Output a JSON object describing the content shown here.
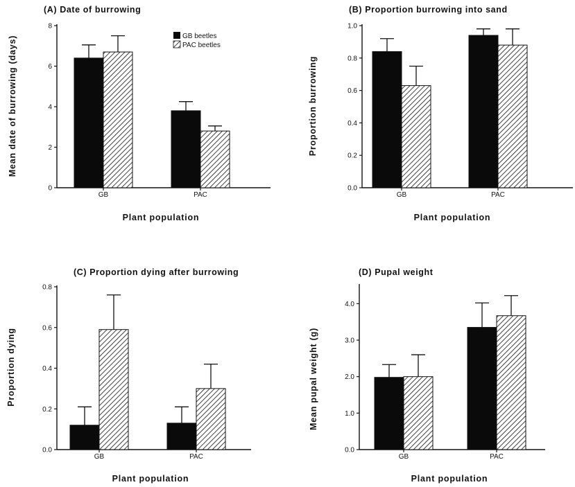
{
  "colors": {
    "gb_fill": "#0a0a0a",
    "pac_hatch": "#111111",
    "background": "#ffffff"
  },
  "legend": {
    "entries": [
      "GB beetles",
      "PAC beetles"
    ]
  },
  "chart_data": [
    {
      "type": "bar",
      "title": "(A)  Date  of  burrowing",
      "xlabel": "Plant  population",
      "ylabel": "Mean  date  of  burrowing  (days)",
      "categories": [
        "GB",
        "PAC"
      ],
      "ylim": [
        0,
        8
      ],
      "yticks": [
        "0",
        "2",
        "4",
        "6",
        "8"
      ],
      "series": [
        {
          "name": "GB beetles",
          "values": [
            6.4,
            3.8
          ],
          "errors": [
            0.65,
            0.45
          ]
        },
        {
          "name": "PAC beetles",
          "values": [
            6.7,
            2.8
          ],
          "errors": [
            0.8,
            0.25
          ]
        }
      ],
      "legend": "top-right"
    },
    {
      "type": "bar",
      "title": "(B)  Proportion  burrowing  into  sand",
      "xlabel": "Plant  population",
      "ylabel": "Proportion  burrowing",
      "categories": [
        "GB",
        "PAC"
      ],
      "ylim": [
        0,
        1
      ],
      "yticks": [
        "0.0",
        "0.2",
        "0.4",
        "0.6",
        "0.8",
        "1.0"
      ],
      "series": [
        {
          "name": "GB beetles",
          "values": [
            0.84,
            0.94
          ],
          "errors": [
            0.08,
            0.04
          ]
        },
        {
          "name": "PAC beetles",
          "values": [
            0.63,
            0.88
          ],
          "errors": [
            0.12,
            0.1
          ]
        }
      ]
    },
    {
      "type": "bar",
      "title": "(C)  Proportion  dying  after  burrowing",
      "xlabel": "Plant  population",
      "ylabel": "Proportion  dying",
      "categories": [
        "GB",
        "PAC"
      ],
      "ylim": [
        0,
        0.8
      ],
      "yticks": [
        "0.0",
        "0.2",
        "0.4",
        "0.6",
        "0.8"
      ],
      "series": [
        {
          "name": "GB beetles",
          "values": [
            0.12,
            0.13
          ],
          "errors": [
            0.09,
            0.08
          ]
        },
        {
          "name": "PAC beetles",
          "values": [
            0.59,
            0.3
          ],
          "errors": [
            0.17,
            0.12
          ]
        }
      ]
    },
    {
      "type": "bar",
      "title": "(D)  Pupal  weight",
      "xlabel": "Plant  population",
      "ylabel": "Mean  pupal  weight  (g)",
      "categories": [
        "GB",
        "PAC"
      ],
      "ylim": [
        0,
        4.5
      ],
      "yticks": [
        "0.0",
        "1.0",
        "2.0",
        "3.0",
        "4.0"
      ],
      "series": [
        {
          "name": "GB beetles",
          "values": [
            1.98,
            3.35
          ],
          "errors": [
            0.35,
            0.67
          ]
        },
        {
          "name": "PAC beetles",
          "values": [
            2.0,
            3.67
          ],
          "errors": [
            0.6,
            0.55
          ]
        }
      ]
    }
  ]
}
